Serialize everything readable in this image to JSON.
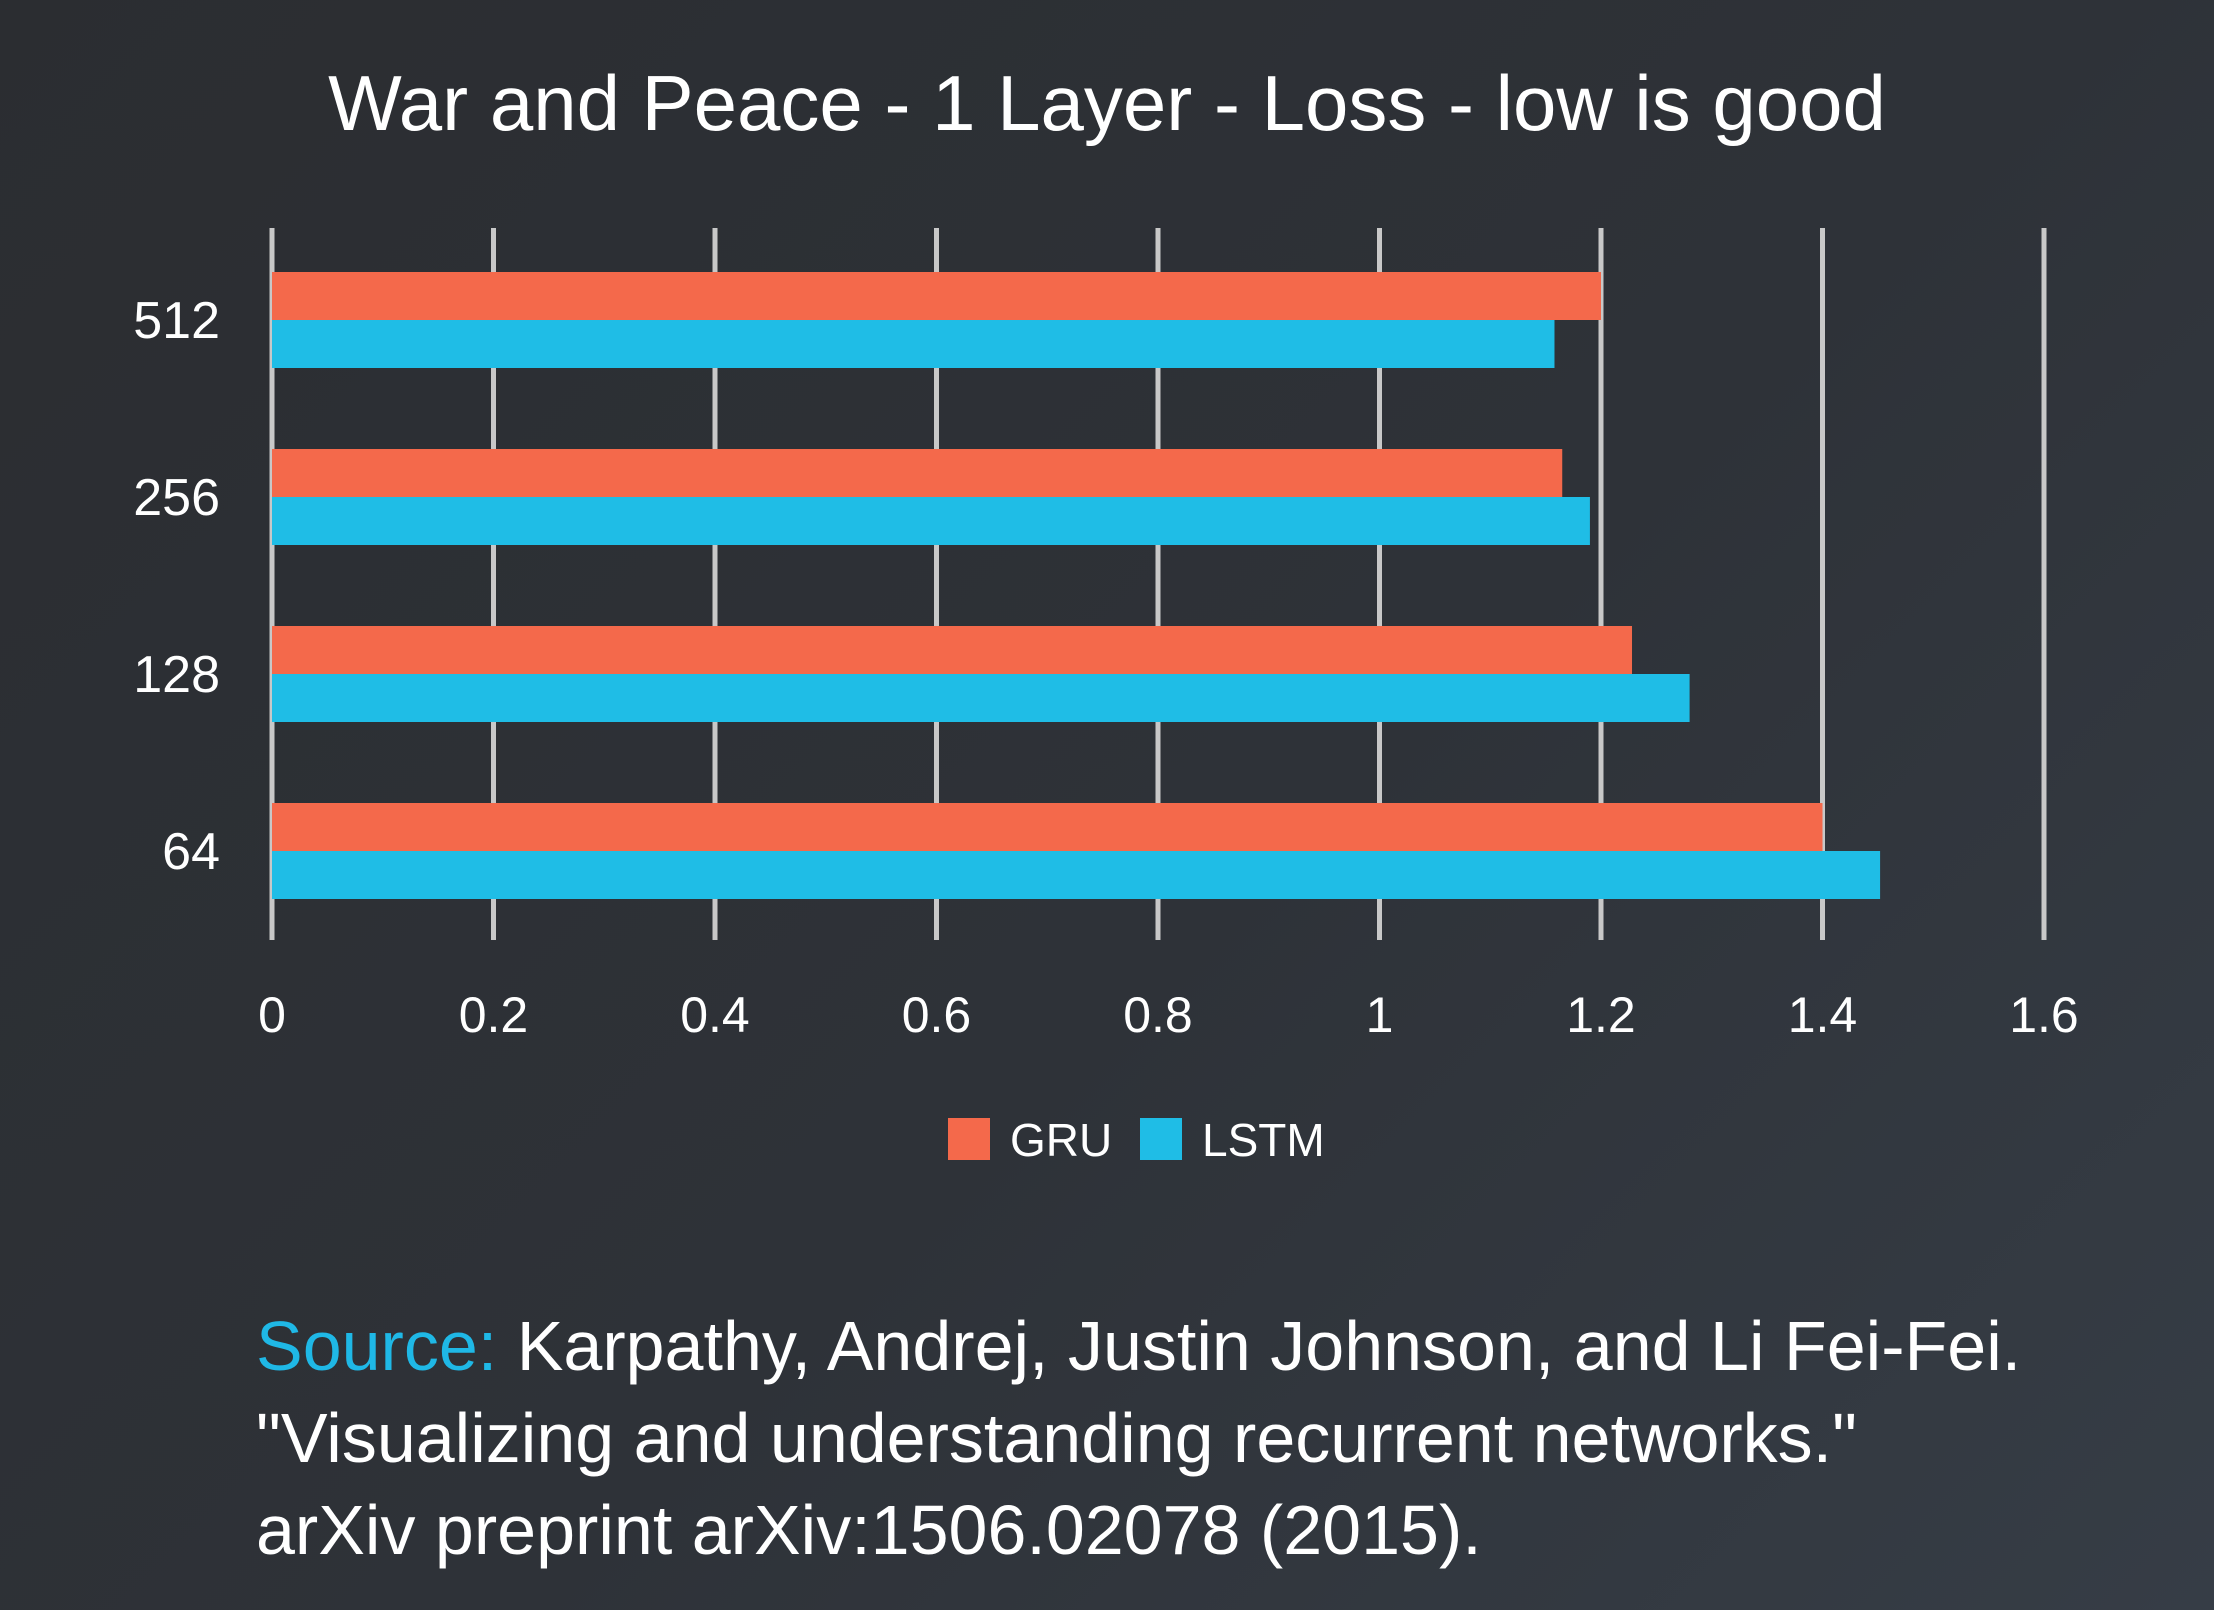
{
  "chart_data": {
    "type": "bar",
    "orientation": "horizontal",
    "title": "War and Peace - 1 Layer - Loss - low is good",
    "categories": [
      "512",
      "256",
      "128",
      "64"
    ],
    "series": [
      {
        "name": "GRU",
        "color": "#f4694b",
        "values": [
          1.2,
          1.165,
          1.228,
          1.4
        ]
      },
      {
        "name": "LSTM",
        "color": "#1fbde6",
        "values": [
          1.158,
          1.19,
          1.28,
          1.452
        ]
      }
    ],
    "xlim": [
      0,
      1.6
    ],
    "x_ticks": [
      "0",
      "0.2",
      "0.4",
      "0.6",
      "0.8",
      "1",
      "1.2",
      "1.4",
      "1.6"
    ],
    "grid": true,
    "legend_position": "bottom"
  },
  "citation": {
    "label": "Source:",
    "line1": " Karpathy, Andrej, Justin Johnson, and Li Fei-Fei.",
    "line2": "\"Visualizing and understanding recurrent networks.\"",
    "line3": "arXiv preprint arXiv:1506.02078 (2015)."
  }
}
